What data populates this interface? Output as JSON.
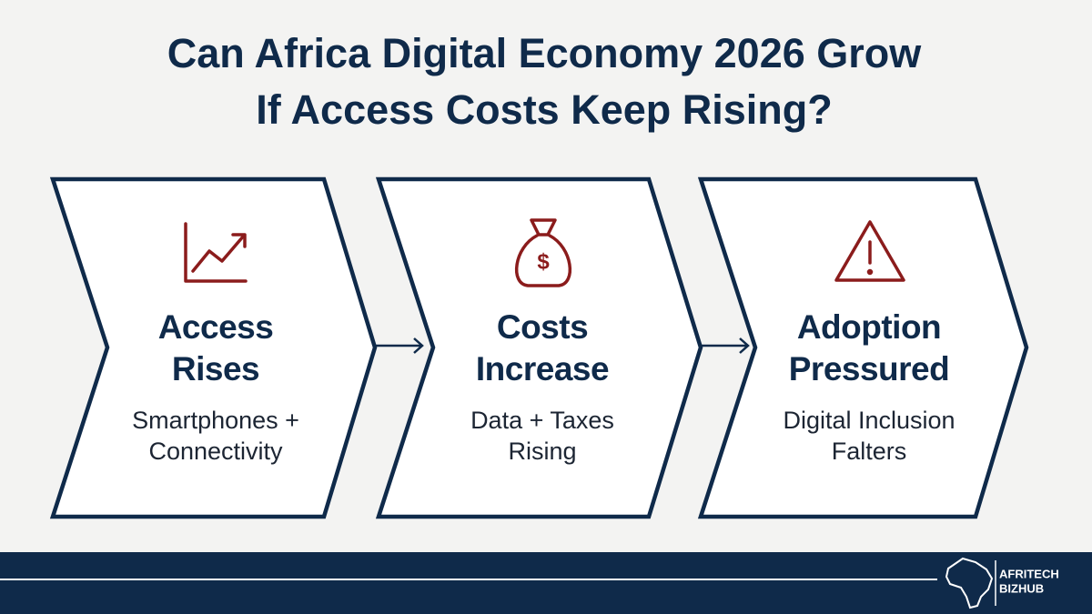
{
  "header": {
    "title_lines": [
      "Can Africa Digital Economy 2026 Grow",
      "If Access Costs Keep Rising?"
    ]
  },
  "steps": [
    {
      "title_lines": [
        "Access",
        "Rises"
      ],
      "subtitle_lines": [
        "Smartphones +",
        "Connectivity"
      ]
    },
    {
      "title_lines": [
        "Costs",
        "Increase"
      ],
      "subtitle_lines": [
        "Data + Taxes",
        "Rising"
      ]
    },
    {
      "title_lines": [
        "Adoption",
        "Pressured"
      ],
      "subtitle_lines": [
        "Digital Inclusion",
        "Falters"
      ]
    }
  ],
  "footer": {
    "logo_lines": [
      "AFRITECH",
      "BIZHUB"
    ]
  }
}
